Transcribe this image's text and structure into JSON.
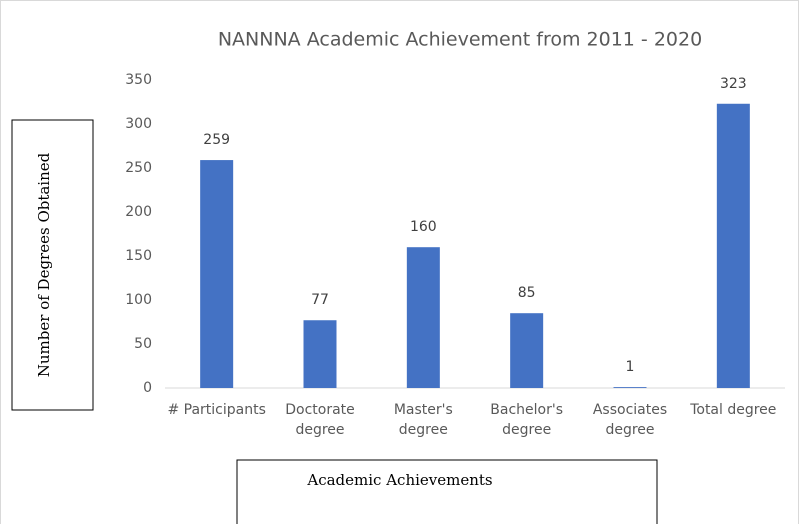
{
  "chart_data": {
    "type": "bar",
    "title": "NANNNA Academic Achievement from 2011 - 2020",
    "y_label": "Number of Degrees Obtained",
    "x_label": "Academic Achievements",
    "categories": [
      "# Participants",
      "Doctorate degree",
      "Master's degree",
      "Bachelor's degree",
      "Associates degree",
      "Total degree"
    ],
    "values": [
      259,
      77,
      160,
      85,
      1,
      323
    ],
    "color": "#4472c4",
    "ylim": [
      0,
      350
    ],
    "yticks": [
      0,
      50,
      100,
      150,
      200,
      250,
      300,
      350
    ],
    "grid": false
  }
}
